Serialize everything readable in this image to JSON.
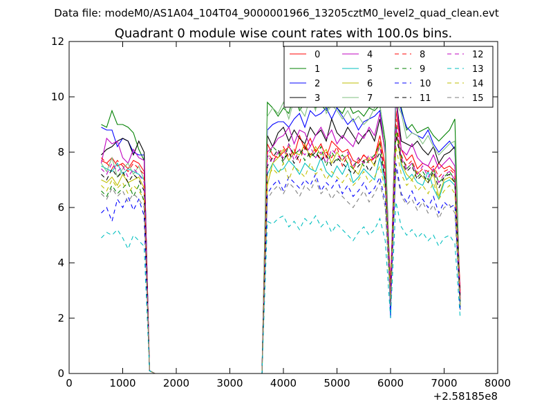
{
  "figure": {
    "suptitle": "Data file: modeM0/AS1A04_104T04_9000001966_13205cztM0_level2_quad_clean.evt"
  },
  "chart_data": {
    "type": "line",
    "title": "Quadrant 0 module wise count rates with 100.0s bins.",
    "xlabel": "",
    "ylabel": "",
    "x_offset_label": "+2.58185e8",
    "xlim": [
      0,
      8000
    ],
    "ylim": [
      0,
      12
    ],
    "xticks": [
      0,
      1000,
      2000,
      3000,
      4000,
      5000,
      6000,
      7000,
      8000
    ],
    "yticks": [
      0,
      2,
      4,
      6,
      8,
      10,
      12
    ],
    "grid": false,
    "legend": {
      "placement": "top-right",
      "columns": 4
    },
    "x": [
      600,
      700,
      800,
      900,
      1000,
      1100,
      1200,
      1300,
      1400,
      1500,
      1600,
      1700,
      1800,
      1900,
      2000,
      2100,
      2200,
      2300,
      2400,
      2500,
      2600,
      2700,
      2800,
      2900,
      3000,
      3100,
      3200,
      3300,
      3400,
      3500,
      3600,
      3700,
      3800,
      3900,
      4000,
      4100,
      4200,
      4300,
      4400,
      4500,
      4600,
      4700,
      4800,
      4900,
      5000,
      5100,
      5200,
      5300,
      5400,
      5500,
      5600,
      5700,
      5800,
      5900,
      6000,
      6100,
      6200,
      6300,
      6400,
      6500,
      6600,
      6700,
      6800,
      6900,
      7000,
      7100,
      7200,
      7300
    ],
    "series": [
      {
        "name": "0",
        "color": "#ff0000",
        "dash": false,
        "values": [
          7.7,
          7.6,
          7.8,
          7.5,
          7.6,
          7.4,
          7.7,
          7.6,
          7.3,
          0.1,
          0,
          0,
          0,
          0,
          0,
          0,
          0,
          0,
          0,
          0,
          0,
          0,
          0,
          0,
          0,
          0,
          0,
          0,
          0,
          0,
          0,
          8.3,
          7.9,
          7.8,
          8.0,
          8.2,
          7.9,
          8.6,
          8.1,
          8.5,
          8.0,
          8.3,
          7.8,
          8.4,
          8.2,
          8.0,
          8.1,
          7.7,
          7.6,
          7.9,
          7.7,
          7.8,
          8.6,
          7.5,
          3.2,
          9.5,
          8.1,
          7.7,
          7.9,
          7.4,
          7.6,
          7.5,
          7.3,
          7.6,
          7.4,
          7.5,
          7.3,
          3.0
        ]
      },
      {
        "name": "1",
        "color": "#008000",
        "dash": false,
        "values": [
          9.0,
          8.9,
          9.5,
          9.0,
          9.0,
          8.9,
          8.7,
          8.1,
          7.7,
          0.1,
          0,
          0,
          0,
          0,
          0,
          0,
          0,
          0,
          0,
          0,
          0,
          0,
          0,
          0,
          0,
          0,
          0,
          0,
          0,
          0,
          0,
          9.8,
          9.6,
          9.3,
          9.6,
          9.4,
          10.1,
          9.5,
          9.8,
          9.9,
          9.6,
          9.7,
          9.5,
          9.8,
          9.6,
          9.4,
          9.8,
          9.4,
          9.5,
          9.3,
          9.6,
          9.5,
          9.7,
          8.4,
          2.8,
          10.2,
          9.6,
          8.8,
          9.0,
          8.7,
          8.8,
          8.9,
          8.6,
          8.4,
          8.6,
          8.8,
          9.2,
          2.4
        ]
      },
      {
        "name": "2",
        "color": "#0000ff",
        "dash": false,
        "values": [
          8.9,
          8.8,
          8.8,
          8.2,
          8.5,
          8.4,
          8.0,
          7.9,
          7.9,
          0.1,
          0,
          0,
          0,
          0,
          0,
          0,
          0,
          0,
          0,
          0,
          0,
          0,
          0,
          0,
          0,
          0,
          0,
          0,
          0,
          0,
          0,
          8.8,
          9.0,
          9.1,
          9.1,
          8.9,
          9.2,
          9.4,
          8.9,
          9.5,
          9.3,
          9.4,
          9.6,
          9.2,
          9.6,
          9.3,
          9.0,
          9.2,
          8.8,
          9.1,
          9.2,
          9.3,
          9.5,
          8.1,
          2.0,
          10.4,
          9.5,
          8.9,
          8.7,
          8.6,
          8.5,
          8.8,
          8.3,
          8.0,
          8.2,
          8.4,
          8.1,
          2.6
        ]
      },
      {
        "name": "3",
        "color": "#000000",
        "dash": false,
        "values": [
          7.9,
          8.1,
          8.2,
          8.4,
          8.5,
          8.4,
          7.9,
          8.4,
          8.0,
          0.1,
          0,
          0,
          0,
          0,
          0,
          0,
          0,
          0,
          0,
          0,
          0,
          0,
          0,
          0,
          0,
          0,
          0,
          0,
          0,
          0,
          0,
          8.6,
          8.2,
          8.7,
          8.9,
          8.4,
          8.8,
          8.5,
          8.3,
          8.9,
          8.6,
          8.8,
          8.4,
          9.2,
          8.7,
          8.5,
          8.9,
          8.6,
          8.3,
          8.6,
          8.8,
          8.4,
          9.2,
          8.0,
          2.6,
          10.0,
          8.4,
          8.3,
          8.2,
          8.4,
          8.1,
          7.9,
          8.2,
          7.6,
          7.9,
          8.0,
          8.2,
          2.6
        ]
      },
      {
        "name": "4",
        "color": "#bf00bf",
        "dash": false,
        "values": [
          7.6,
          8.5,
          8.3,
          8.4,
          7.8,
          7.6,
          8.1,
          7.8,
          7.7,
          0.1,
          0,
          0,
          0,
          0,
          0,
          0,
          0,
          0,
          0,
          0,
          0,
          0,
          0,
          0,
          0,
          0,
          0,
          0,
          0,
          0,
          0,
          8.0,
          8.2,
          8.5,
          8.6,
          8.9,
          8.3,
          8.8,
          8.7,
          8.2,
          8.6,
          8.9,
          8.5,
          8.8,
          8.3,
          8.6,
          8.4,
          8.2,
          8.7,
          8.5,
          8.9,
          8.6,
          9.4,
          7.9,
          2.9,
          9.9,
          8.1,
          7.9,
          8.3,
          7.8,
          7.6,
          7.5,
          7.9,
          7.4,
          7.6,
          7.8,
          7.5,
          2.8
        ]
      },
      {
        "name": "5",
        "color": "#00bfbf",
        "dash": false,
        "values": [
          7.5,
          7.4,
          7.3,
          7.6,
          7.2,
          7.4,
          7.3,
          7.2,
          7.0,
          0.1,
          0,
          0,
          0,
          0,
          0,
          0,
          0,
          0,
          0,
          0,
          0,
          0,
          0,
          0,
          0,
          0,
          0,
          0,
          0,
          0,
          0,
          7.2,
          7.6,
          7.3,
          7.4,
          7.7,
          7.5,
          7.2,
          7.6,
          7.4,
          7.3,
          7.8,
          7.3,
          7.1,
          7.5,
          7.2,
          7.6,
          6.9,
          7.1,
          7.4,
          7.2,
          7.0,
          7.8,
          6.8,
          2.7,
          9.0,
          7.5,
          7.0,
          7.2,
          6.9,
          6.8,
          7.3,
          6.7,
          6.3,
          6.9,
          7.0,
          6.8,
          2.5
        ]
      },
      {
        "name": "6",
        "color": "#bfbf00",
        "dash": false,
        "values": [
          7.0,
          6.9,
          7.1,
          6.8,
          7.2,
          6.9,
          7.0,
          7.1,
          6.7,
          0.1,
          0,
          0,
          0,
          0,
          0,
          0,
          0,
          0,
          0,
          0,
          0,
          0,
          0,
          0,
          0,
          0,
          0,
          0,
          0,
          0,
          0,
          6.8,
          7.6,
          7.8,
          8.1,
          7.7,
          8.0,
          7.9,
          8.3,
          7.8,
          8.2,
          7.9,
          8.1,
          7.6,
          8.0,
          7.7,
          7.9,
          7.4,
          7.2,
          7.7,
          7.8,
          7.5,
          8.4,
          7.0,
          2.9,
          8.8,
          7.6,
          7.2,
          7.0,
          7.3,
          7.1,
          6.9,
          7.2,
          6.4,
          7.0,
          7.1,
          6.9,
          2.6
        ]
      },
      {
        "name": "7",
        "color": "#7fbf7f",
        "dash": false,
        "values": [
          7.6,
          7.3,
          7.8,
          7.1,
          7.4,
          7.6,
          7.2,
          7.5,
          7.0,
          0.1,
          0,
          0,
          0,
          0,
          0,
          0,
          0,
          0,
          0,
          0,
          0,
          0,
          0,
          0,
          0,
          0,
          0,
          0,
          0,
          0,
          0,
          9.3,
          9.6,
          9.4,
          9.8,
          9.2,
          9.9,
          9.6,
          9.3,
          10.0,
          9.5,
          10.6,
          9.4,
          9.7,
          9.5,
          9.2,
          9.5,
          9.1,
          9.3,
          9.0,
          9.2,
          9.6,
          9.8,
          8.0,
          2.7,
          9.8,
          9.4,
          8.5,
          8.7,
          8.6,
          8.3,
          8.6,
          8.2,
          7.9,
          8.1,
          8.3,
          8.4,
          2.5
        ]
      },
      {
        "name": "8",
        "color": "#ff0000",
        "dash": true,
        "values": [
          7.8,
          7.6,
          7.4,
          7.7,
          7.5,
          7.3,
          7.6,
          7.4,
          7.2,
          0.1,
          0,
          0,
          0,
          0,
          0,
          0,
          0,
          0,
          0,
          0,
          0,
          0,
          0,
          0,
          0,
          0,
          0,
          0,
          0,
          0,
          0,
          8.0,
          7.7,
          7.9,
          8.2,
          7.8,
          8.1,
          7.6,
          8.3,
          7.9,
          8.1,
          7.7,
          8.0,
          7.8,
          8.2,
          7.5,
          7.9,
          7.4,
          7.7,
          7.9,
          7.6,
          7.8,
          8.4,
          7.3,
          3.0,
          9.2,
          7.8,
          7.5,
          7.7,
          7.2,
          7.4,
          7.3,
          7.5,
          7.1,
          7.3,
          7.4,
          7.2,
          2.9
        ]
      },
      {
        "name": "9",
        "color": "#008000",
        "dash": true,
        "values": [
          6.6,
          6.4,
          6.8,
          6.5,
          6.7,
          6.9,
          6.4,
          6.8,
          6.2,
          0.1,
          0,
          0,
          0,
          0,
          0,
          0,
          0,
          0,
          0,
          0,
          0,
          0,
          0,
          0,
          0,
          0,
          0,
          0,
          0,
          0,
          0,
          7.8,
          8.2,
          8.0,
          7.6,
          8.3,
          7.9,
          8.1,
          7.7,
          8.0,
          7.8,
          8.2,
          7.5,
          8.0,
          7.7,
          7.9,
          7.6,
          7.4,
          7.8,
          7.5,
          7.7,
          7.9,
          8.3,
          7.0,
          2.8,
          8.9,
          7.9,
          7.4,
          7.6,
          7.1,
          7.3,
          7.0,
          7.4,
          6.9,
          7.1,
          7.3,
          7.0,
          2.6
        ]
      },
      {
        "name": "10",
        "color": "#0000ff",
        "dash": true,
        "values": [
          5.8,
          6.0,
          5.5,
          6.3,
          6.0,
          6.4,
          5.9,
          6.3,
          5.7,
          0.1,
          0,
          0,
          0,
          0,
          0,
          0,
          0,
          0,
          0,
          0,
          0,
          0,
          0,
          0,
          0,
          0,
          0,
          0,
          0,
          0,
          0,
          6.5,
          6.8,
          7.0,
          6.6,
          7.1,
          6.9,
          6.7,
          7.0,
          6.8,
          7.2,
          6.6,
          6.9,
          6.7,
          7.0,
          6.5,
          6.8,
          6.4,
          6.6,
          6.9,
          6.5,
          6.7,
          7.1,
          6.2,
          2.5,
          7.6,
          6.5,
          6.2,
          6.6,
          6.1,
          6.3,
          6.0,
          6.4,
          5.8,
          6.2,
          6.0,
          6.1,
          2.3
        ]
      },
      {
        "name": "11",
        "color": "#000000",
        "dash": true,
        "values": [
          7.2,
          7.0,
          7.4,
          7.1,
          7.3,
          6.9,
          7.2,
          7.0,
          6.6,
          0.1,
          0,
          0,
          0,
          0,
          0,
          0,
          0,
          0,
          0,
          0,
          0,
          0,
          0,
          0,
          0,
          0,
          0,
          0,
          0,
          0,
          0,
          7.5,
          7.8,
          8.1,
          7.7,
          8.0,
          7.6,
          7.9,
          8.2,
          7.8,
          8.0,
          7.7,
          7.9,
          7.5,
          7.8,
          7.6,
          7.4,
          7.2,
          7.5,
          7.7,
          7.3,
          7.6,
          8.0,
          7.0,
          2.8,
          8.6,
          7.7,
          7.3,
          7.5,
          7.0,
          7.2,
          6.9,
          7.3,
          6.7,
          7.1,
          7.2,
          6.9,
          2.7
        ]
      },
      {
        "name": "12",
        "color": "#bf00bf",
        "dash": true,
        "values": [
          7.4,
          7.2,
          7.6,
          7.3,
          7.5,
          7.1,
          7.4,
          7.2,
          6.9,
          0.1,
          0,
          0,
          0,
          0,
          0,
          0,
          0,
          0,
          0,
          0,
          0,
          0,
          0,
          0,
          0,
          0,
          0,
          0,
          0,
          0,
          0,
          7.9,
          7.6,
          8.0,
          7.8,
          8.3,
          7.7,
          8.1,
          7.9,
          8.2,
          7.8,
          8.0,
          7.6,
          8.1,
          7.9,
          7.7,
          8.0,
          7.5,
          7.8,
          7.6,
          7.9,
          7.7,
          8.2,
          7.1,
          2.9,
          8.9,
          7.8,
          7.4,
          7.6,
          7.2,
          7.5,
          7.1,
          7.4,
          6.9,
          7.2,
          7.3,
          7.0,
          2.7
        ]
      },
      {
        "name": "13",
        "color": "#00bfbf",
        "dash": true,
        "values": [
          4.9,
          5.1,
          5.0,
          5.2,
          4.9,
          4.5,
          5.0,
          4.8,
          4.6,
          0.1,
          0,
          0,
          0,
          0,
          0,
          0,
          0,
          0,
          0,
          0,
          0,
          0,
          0,
          0,
          0,
          0,
          0,
          0,
          0,
          0,
          0,
          5.5,
          5.4,
          5.6,
          5.7,
          5.3,
          5.5,
          5.2,
          5.6,
          5.4,
          5.7,
          5.3,
          5.5,
          5.1,
          5.4,
          5.2,
          5.0,
          4.8,
          5.1,
          5.3,
          5.0,
          5.2,
          5.6,
          4.8,
          2.0,
          6.2,
          5.3,
          5.0,
          5.2,
          4.9,
          5.1,
          4.8,
          5.0,
          4.6,
          4.9,
          5.0,
          4.7,
          2.0
        ]
      },
      {
        "name": "14",
        "color": "#bfbf00",
        "dash": true,
        "values": [
          6.8,
          6.6,
          7.0,
          6.7,
          6.9,
          6.5,
          6.8,
          6.6,
          6.3,
          0.1,
          0,
          0,
          0,
          0,
          0,
          0,
          0,
          0,
          0,
          0,
          0,
          0,
          0,
          0,
          0,
          0,
          0,
          0,
          0,
          0,
          0,
          7.1,
          7.4,
          7.2,
          7.6,
          7.0,
          7.5,
          7.3,
          7.1,
          7.6,
          7.2,
          7.4,
          7.0,
          7.3,
          7.1,
          6.9,
          7.2,
          6.8,
          7.0,
          7.3,
          6.9,
          7.1,
          7.5,
          6.6,
          2.6,
          8.2,
          7.2,
          6.8,
          7.0,
          6.6,
          6.8,
          6.5,
          6.9,
          6.3,
          6.6,
          6.8,
          6.5,
          2.5
        ]
      },
      {
        "name": "15",
        "color": "#7f7f7f",
        "dash": true,
        "values": [
          6.5,
          6.3,
          6.7,
          6.4,
          6.6,
          6.2,
          6.5,
          6.3,
          6.0,
          0.1,
          0,
          0,
          0,
          0,
          0,
          0,
          0,
          0,
          0,
          0,
          0,
          0,
          0,
          0,
          0,
          0,
          0,
          0,
          0,
          0,
          0,
          6.3,
          6.6,
          6.8,
          6.5,
          6.9,
          6.7,
          6.4,
          6.8,
          6.6,
          7.0,
          6.5,
          6.7,
          6.3,
          6.6,
          6.4,
          6.2,
          6.0,
          6.3,
          6.6,
          6.2,
          6.5,
          6.9,
          6.0,
          2.4,
          7.4,
          6.4,
          6.1,
          6.3,
          5.9,
          6.2,
          5.8,
          6.1,
          5.6,
          6.0,
          6.1,
          5.8,
          2.3
        ]
      }
    ]
  }
}
